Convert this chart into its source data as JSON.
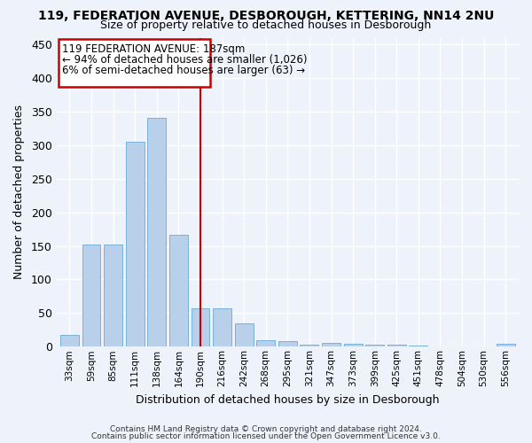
{
  "title": "119, FEDERATION AVENUE, DESBOROUGH, KETTERING, NN14 2NU",
  "subtitle": "Size of property relative to detached houses in Desborough",
  "xlabel": "Distribution of detached houses by size in Desborough",
  "ylabel": "Number of detached properties",
  "categories": [
    "33sqm",
    "59sqm",
    "85sqm",
    "111sqm",
    "138sqm",
    "164sqm",
    "190sqm",
    "216sqm",
    "242sqm",
    "268sqm",
    "295sqm",
    "321sqm",
    "347sqm",
    "373sqm",
    "399sqm",
    "425sqm",
    "451sqm",
    "478sqm",
    "504sqm",
    "530sqm",
    "556sqm"
  ],
  "values": [
    17,
    152,
    152,
    305,
    340,
    167,
    57,
    57,
    35,
    10,
    8,
    3,
    5,
    4,
    3,
    3,
    2,
    0,
    0,
    0,
    4
  ],
  "bar_color": "#b8d0ea",
  "bar_edge_color": "#6aaad4",
  "highlight_index": 6,
  "highlight_line_color": "#cc0000",
  "ylim": [
    0,
    460
  ],
  "yticks": [
    0,
    50,
    100,
    150,
    200,
    250,
    300,
    350,
    400,
    450
  ],
  "annotation_title": "119 FEDERATION AVENUE: 187sqm",
  "annotation_line1": "← 94% of detached houses are smaller (1,026)",
  "annotation_line2": "6% of semi-detached houses are larger (63) →",
  "annotation_box_color": "#ffffff",
  "annotation_box_edge_color": "#cc0000",
  "bg_color": "#eef2fa",
  "grid_color": "#ffffff",
  "footer_line1": "Contains HM Land Registry data © Crown copyright and database right 2024.",
  "footer_line2": "Contains public sector information licensed under the Open Government Licence v3.0."
}
